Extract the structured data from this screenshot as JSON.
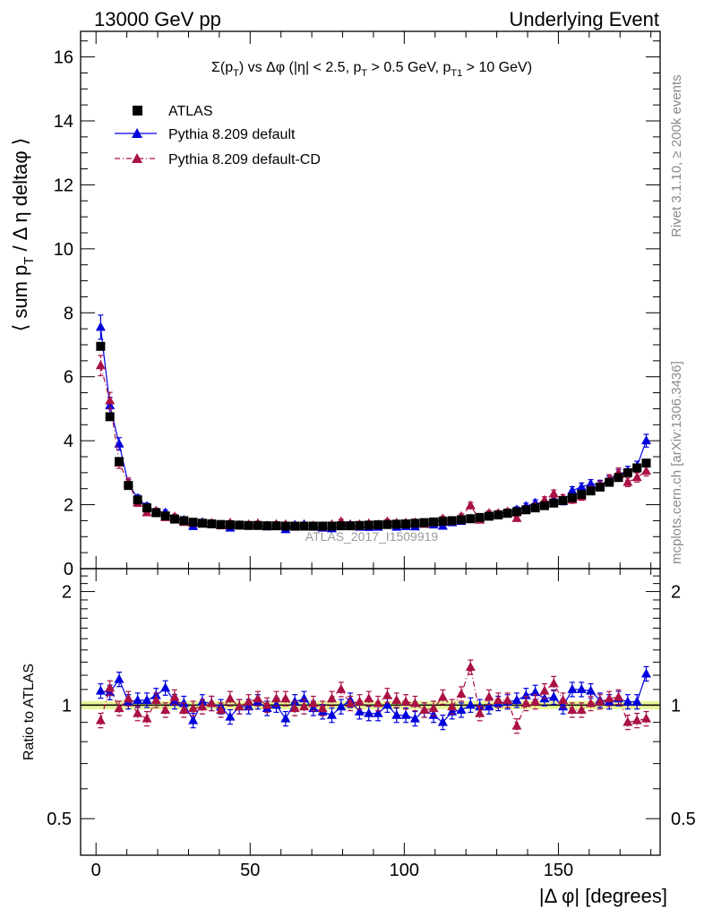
{
  "header": {
    "left": "13000 GeV pp",
    "right": "Underlying Event"
  },
  "plot_title": "Σ(p_T) vs Δφ (|η| < 2.5, p_T > 0.5 GeV, p_T1 > 10 GeV)",
  "plot_title_parts": [
    "Σ(p",
    "T",
    ") vs Δφ (|η| < 2.5, p",
    "T",
    " > 0.5 GeV, p",
    "T1",
    " > 10 GeV)"
  ],
  "ylabel_parts": [
    "⟨ sum p",
    "T",
    " / Δ η deltaφ ⟩"
  ],
  "ratio_ylabel": "Ratio to ATLAS",
  "xlabel": "|Δ φ| [degrees]",
  "side_text_top": "Rivet 3.1.10, ≥ 200k events",
  "side_text_bottom": "mcplots.cern.ch [arXiv:1306.3436]",
  "watermark": "ATLAS_2017_I1509919",
  "legend": [
    {
      "label": "ATLAS",
      "marker": "square",
      "color": "#000000"
    },
    {
      "label": "Pythia 8.209 default",
      "marker": "triangle",
      "color": "#0000dd"
    },
    {
      "label": "Pythia 8.209 default-CD",
      "marker": "triangle",
      "color": "#aa1144"
    }
  ],
  "chart_data": {
    "type": "scatter",
    "x": [
      1.5,
      4.5,
      7.5,
      10.5,
      13.5,
      16.5,
      19.5,
      22.5,
      25.5,
      28.5,
      31.5,
      34.5,
      37.5,
      40.5,
      43.5,
      46.5,
      49.5,
      52.5,
      55.5,
      58.5,
      61.5,
      64.5,
      67.5,
      70.5,
      73.5,
      76.5,
      79.5,
      82.5,
      85.5,
      88.5,
      91.5,
      94.5,
      97.5,
      100.5,
      103.5,
      106.5,
      109.5,
      112.5,
      115.5,
      118.5,
      121.5,
      124.5,
      127.5,
      130.5,
      133.5,
      136.5,
      139.5,
      142.5,
      145.5,
      148.5,
      151.5,
      154.5,
      157.5,
      160.5,
      163.5,
      166.5,
      169.5,
      172.5,
      175.5,
      178.5
    ],
    "series": [
      {
        "name": "ATLAS",
        "color": "#000000",
        "values": [
          6.95,
          4.75,
          3.35,
          2.6,
          2.15,
          1.9,
          1.75,
          1.65,
          1.55,
          1.5,
          1.45,
          1.42,
          1.4,
          1.38,
          1.37,
          1.36,
          1.35,
          1.35,
          1.34,
          1.34,
          1.33,
          1.33,
          1.33,
          1.33,
          1.33,
          1.33,
          1.34,
          1.34,
          1.35,
          1.36,
          1.37,
          1.38,
          1.39,
          1.4,
          1.42,
          1.44,
          1.46,
          1.48,
          1.5,
          1.53,
          1.56,
          1.6,
          1.64,
          1.68,
          1.73,
          1.78,
          1.84,
          1.9,
          1.97,
          2.05,
          2.13,
          2.22,
          2.32,
          2.43,
          2.55,
          2.7,
          2.85,
          3.0,
          3.15,
          3.3
        ]
      },
      {
        "name": "Pythia 8.209 default",
        "color": "#0000dd",
        "values": [
          7.55,
          5.1,
          3.9,
          2.65,
          2.2,
          1.95,
          1.8,
          1.75,
          1.58,
          1.52,
          1.32,
          1.45,
          1.42,
          1.36,
          1.27,
          1.35,
          1.33,
          1.38,
          1.31,
          1.34,
          1.22,
          1.36,
          1.38,
          1.3,
          1.27,
          1.25,
          1.32,
          1.38,
          1.3,
          1.29,
          1.3,
          1.38,
          1.3,
          1.32,
          1.31,
          1.39,
          1.37,
          1.33,
          1.44,
          1.48,
          1.56,
          1.58,
          1.63,
          1.7,
          1.76,
          1.84,
          1.95,
          2.05,
          2.05,
          2.15,
          2.1,
          2.44,
          2.55,
          2.65,
          2.63,
          2.76,
          2.95,
          3.05,
          3.2,
          4.0
        ]
      },
      {
        "name": "Pythia 8.209 default-CD",
        "color": "#aa1144",
        "values": [
          6.35,
          5.25,
          3.3,
          2.7,
          2.05,
          1.75,
          1.8,
          1.6,
          1.62,
          1.45,
          1.42,
          1.4,
          1.42,
          1.34,
          1.43,
          1.34,
          1.38,
          1.41,
          1.34,
          1.39,
          1.38,
          1.3,
          1.32,
          1.34,
          1.3,
          1.38,
          1.47,
          1.36,
          1.38,
          1.41,
          1.38,
          1.47,
          1.43,
          1.43,
          1.44,
          1.39,
          1.43,
          1.56,
          1.48,
          1.63,
          1.97,
          1.52,
          1.73,
          1.73,
          1.78,
          1.57,
          1.85,
          1.94,
          2.14,
          2.34,
          2.2,
          2.15,
          2.25,
          2.45,
          2.6,
          2.8,
          3.0,
          2.7,
          2.85,
          3.05
        ]
      }
    ],
    "ratio": {
      "ylabel": "Ratio to ATLAS",
      "ylim": [
        0.4,
        2.3
      ],
      "yscale": "log",
      "band_halfwidth": 0.025,
      "series": [
        {
          "name": "Pythia 8.209 default",
          "values": [
            1.09,
            1.08,
            1.17,
            1.02,
            1.03,
            1.03,
            1.06,
            1.11,
            1.02,
            1.01,
            0.91,
            1.02,
            1.01,
            0.99,
            0.93,
            0.99,
            0.99,
            1.02,
            0.98,
            1.0,
            0.92,
            1.02,
            1.04,
            0.98,
            0.96,
            0.94,
            0.99,
            1.03,
            0.96,
            0.95,
            0.95,
            1.0,
            0.94,
            0.94,
            0.92,
            0.97,
            0.94,
            0.9,
            0.96,
            0.97,
            1.0,
            0.99,
            0.99,
            1.01,
            1.02,
            1.03,
            1.06,
            1.08,
            1.04,
            1.05,
            0.99,
            1.1,
            1.1,
            1.09,
            1.03,
            1.02,
            1.04,
            1.02,
            1.02,
            1.21
          ]
        },
        {
          "name": "Pythia 8.209 default-CD",
          "values": [
            0.91,
            1.11,
            0.98,
            1.04,
            0.95,
            0.92,
            1.03,
            0.97,
            1.05,
            0.97,
            0.98,
            0.99,
            1.01,
            0.97,
            1.04,
            0.99,
            1.02,
            1.04,
            1.0,
            1.04,
            1.04,
            0.98,
            0.99,
            1.01,
            0.98,
            1.04,
            1.1,
            1.01,
            1.02,
            1.04,
            1.01,
            1.06,
            1.03,
            1.02,
            1.01,
            0.97,
            0.98,
            1.05,
            0.99,
            1.07,
            1.26,
            0.95,
            1.05,
            1.03,
            1.03,
            0.88,
            1.01,
            1.02,
            1.09,
            1.14,
            1.03,
            0.97,
            0.97,
            1.01,
            1.02,
            1.04,
            1.05,
            0.9,
            0.91,
            0.92
          ]
        }
      ]
    },
    "xlim": [
      -5,
      183
    ],
    "ylim": [
      0,
      16.8
    ],
    "xticks": [
      0,
      50,
      100,
      150
    ],
    "yticks": [
      0,
      2,
      4,
      6,
      8,
      10,
      12,
      14,
      16
    ],
    "ratio_yticks": [
      0.5,
      1,
      2
    ],
    "xlabel": "|Δ φ| [degrees]",
    "legend_position": "top-left",
    "grid": false
  }
}
